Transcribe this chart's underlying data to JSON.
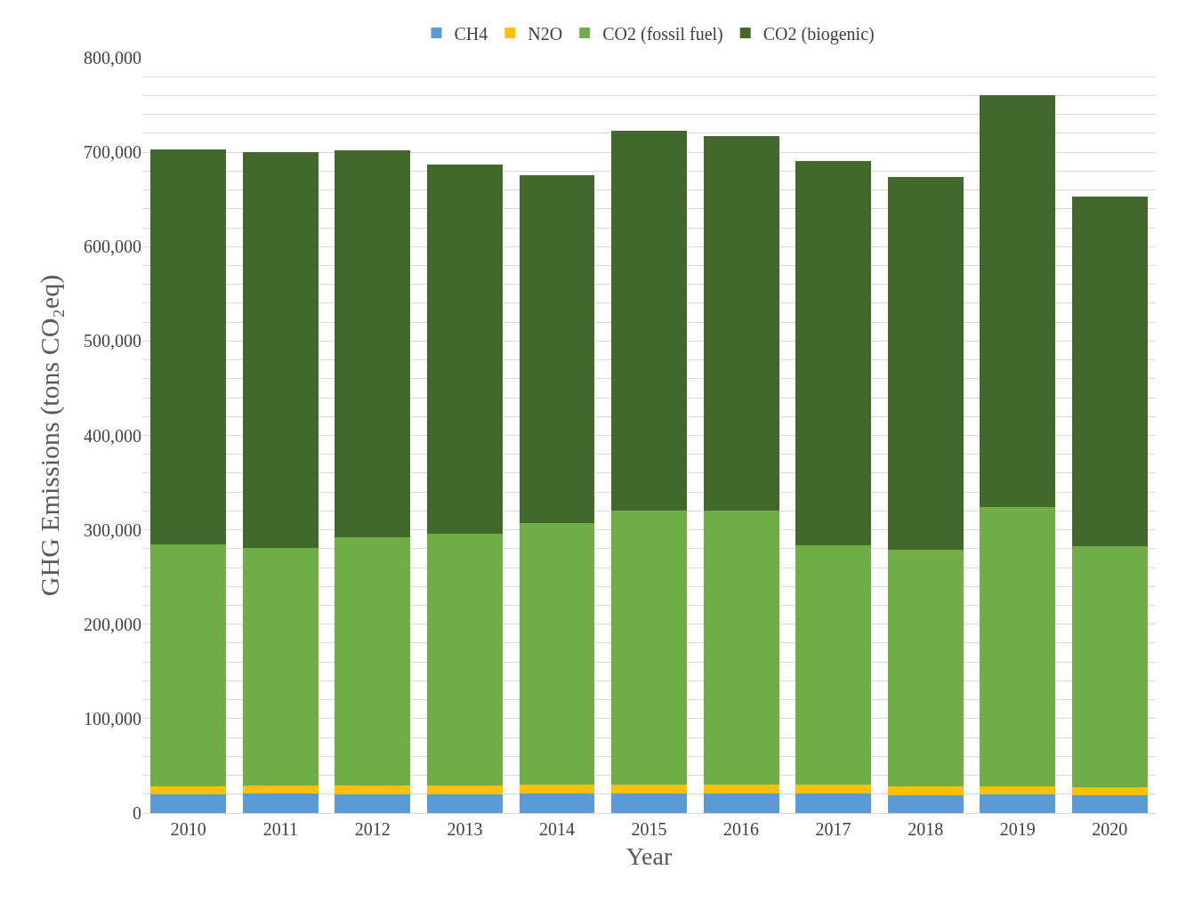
{
  "chart_data": {
    "type": "bar",
    "stacked": true,
    "xlabel": "Year",
    "ylabel": "GHG Emissions (tons CO₂eq)",
    "categories": [
      "2010",
      "2011",
      "2012",
      "2013",
      "2014",
      "2015",
      "2016",
      "2017",
      "2018",
      "2019",
      "2020"
    ],
    "series": [
      {
        "name": "CH4",
        "color": "#5b9bd5",
        "values": [
          20000,
          21000,
          20000,
          20000,
          21000,
          21000,
          21000,
          21000,
          19000,
          20000,
          19000
        ]
      },
      {
        "name": "N2O",
        "color": "#ffc000",
        "values": [
          8000,
          8000,
          9000,
          9000,
          9000,
          9000,
          9000,
          9000,
          9000,
          8000,
          8000
        ]
      },
      {
        "name": "CO2 (fossil fuel)",
        "color": "#70ad47",
        "values": [
          257000,
          252000,
          263000,
          267000,
          277000,
          290000,
          290000,
          254000,
          251000,
          296000,
          256000
        ]
      },
      {
        "name": "CO2 (biogenic)",
        "color": "#43682b",
        "values": [
          418000,
          419000,
          410000,
          391000,
          369000,
          403000,
          397000,
          407000,
          395000,
          436000,
          370000
        ]
      }
    ],
    "ylim": [
      0,
      800000
    ],
    "yticks": [
      {
        "value": 0,
        "label": "0"
      },
      {
        "value": 20000,
        "label": null
      },
      {
        "value": 40000,
        "label": null
      },
      {
        "value": 60000,
        "label": null
      },
      {
        "value": 80000,
        "label": null
      },
      {
        "value": 100000,
        "label": "100,000"
      },
      {
        "value": 120000,
        "label": null
      },
      {
        "value": 140000,
        "label": null
      },
      {
        "value": 160000,
        "label": null
      },
      {
        "value": 180000,
        "label": null
      },
      {
        "value": 200000,
        "label": "200,000"
      },
      {
        "value": 220000,
        "label": null
      },
      {
        "value": 240000,
        "label": null
      },
      {
        "value": 260000,
        "label": null
      },
      {
        "value": 280000,
        "label": null
      },
      {
        "value": 300000,
        "label": "300,000"
      },
      {
        "value": 320000,
        "label": null
      },
      {
        "value": 340000,
        "label": null
      },
      {
        "value": 360000,
        "label": null
      },
      {
        "value": 380000,
        "label": null
      },
      {
        "value": 400000,
        "label": "400,000"
      },
      {
        "value": 420000,
        "label": null
      },
      {
        "value": 440000,
        "label": null
      },
      {
        "value": 460000,
        "label": null
      },
      {
        "value": 480000,
        "label": null
      },
      {
        "value": 500000,
        "label": "500,000"
      },
      {
        "value": 520000,
        "label": null
      },
      {
        "value": 540000,
        "label": null
      },
      {
        "value": 560000,
        "label": null
      },
      {
        "value": 580000,
        "label": null
      },
      {
        "value": 600000,
        "label": "600,000"
      },
      {
        "value": 620000,
        "label": null
      },
      {
        "value": 640000,
        "label": null
      },
      {
        "value": 660000,
        "label": null
      },
      {
        "value": 680000,
        "label": null
      },
      {
        "value": 700000,
        "label": "700,000"
      },
      {
        "value": 720000,
        "label": null
      },
      {
        "value": 740000,
        "label": null
      },
      {
        "value": 760000,
        "label": null
      },
      {
        "value": 780000,
        "label": null
      },
      {
        "value": 800000,
        "label": "800,000"
      }
    ],
    "grid": "y",
    "legend": "top"
  }
}
